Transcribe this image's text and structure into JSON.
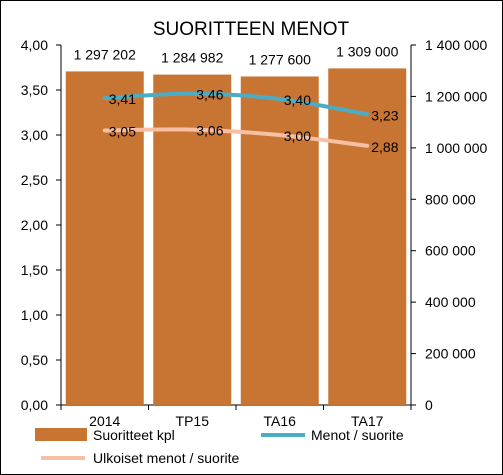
{
  "chart_data": {
    "type": "bar",
    "title": "SUORITTEEN MENOT",
    "categories": [
      "2014",
      "TP15",
      "TA16",
      "TA17"
    ],
    "y_left": {
      "min": 0,
      "max": 4,
      "step": 0.5,
      "ticks": [
        "0,00",
        "0,50",
        "1,00",
        "1,50",
        "2,00",
        "2,50",
        "3,00",
        "3,50",
        "4,00"
      ]
    },
    "y_right": {
      "min": 0,
      "max": 1400000,
      "step": 200000,
      "ticks": [
        "0",
        "200 000",
        "400 000",
        "600 000",
        "800 000",
        "1 000 000",
        "1 200 000",
        "1 400 000"
      ]
    },
    "grid": false,
    "legend_position": "bottom",
    "series": [
      {
        "name": "Suoritteet kpl",
        "type": "bar",
        "axis": "right",
        "color": "#C87533",
        "values": [
          1297202,
          1284982,
          1277600,
          1309000
        ],
        "labels": [
          "1 297 202",
          "1 284 982",
          "1 277 600",
          "1 309 000"
        ]
      },
      {
        "name": "Menot / suorite",
        "type": "line",
        "axis": "left",
        "color": "#4BACC6",
        "values": [
          3.41,
          3.46,
          3.4,
          3.23
        ],
        "labels": [
          "3,41",
          "3,46",
          "3,40",
          "3,23"
        ]
      },
      {
        "name": "Ulkoiset menot / suorite",
        "type": "line",
        "axis": "left",
        "color": "#F7BFA4",
        "values": [
          3.05,
          3.06,
          3.0,
          2.88
        ],
        "labels": [
          "3,05",
          "3,06",
          "3,00",
          "2,88"
        ]
      }
    ]
  }
}
